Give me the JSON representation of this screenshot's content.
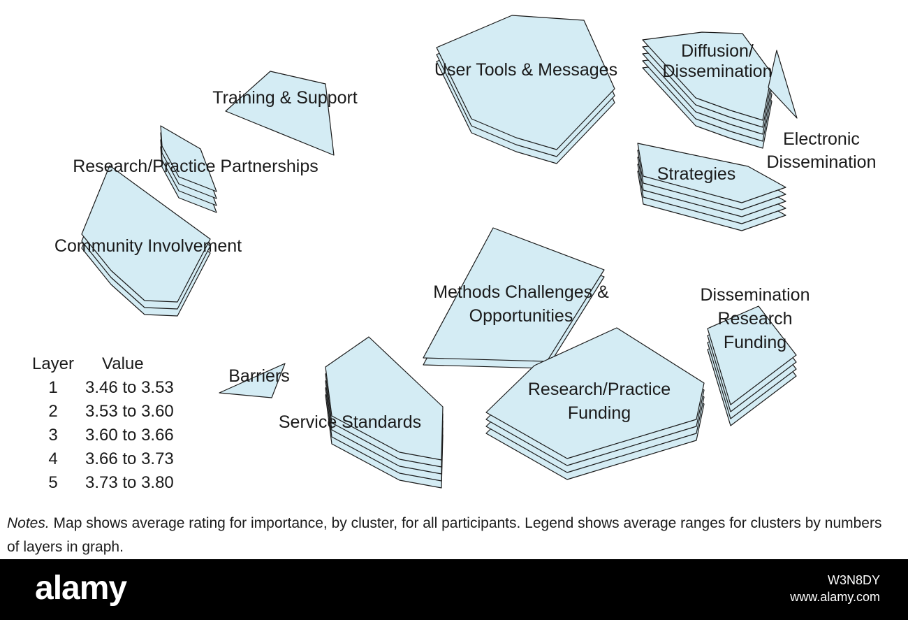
{
  "clusters": [
    {
      "id": "user-tools",
      "lines": [
        "User Tools & Messages"
      ],
      "layers": 3
    },
    {
      "id": "diffusion",
      "lines": [
        "Diffusion/",
        "Dissemination"
      ],
      "layers": 5
    },
    {
      "id": "electronic",
      "lines": [
        "Electronic",
        "Dissemination"
      ],
      "layers": 1
    },
    {
      "id": "strategies",
      "lines": [
        "Strategies"
      ],
      "layers": 5
    },
    {
      "id": "training",
      "lines": [
        "Training & Support"
      ],
      "layers": 1
    },
    {
      "id": "rp-partnerships",
      "lines": [
        "Research/Practice Partnerships"
      ],
      "layers": 4
    },
    {
      "id": "community",
      "lines": [
        "Community Involvement"
      ],
      "layers": 3
    },
    {
      "id": "methods",
      "lines": [
        "Methods Challenges &",
        "Opportunities"
      ],
      "layers": 2
    },
    {
      "id": "dissem-research",
      "lines": [
        "Dissemination",
        "Research",
        "Funding"
      ],
      "layers": 4
    },
    {
      "id": "rp-funding",
      "lines": [
        "Research/Practice",
        "Funding"
      ],
      "layers": 4
    },
    {
      "id": "barriers",
      "lines": [
        "Barriers"
      ],
      "layers": 1
    },
    {
      "id": "service",
      "lines": [
        "Service Standards"
      ],
      "layers": 5
    }
  ],
  "legend": {
    "header_layer": "Layer",
    "header_value": "Value",
    "rows": [
      {
        "layer": "1",
        "value": "3.46 to 3.53"
      },
      {
        "layer": "2",
        "value": "3.53 to 3.60"
      },
      {
        "layer": "3",
        "value": "3.60 to 3.66"
      },
      {
        "layer": "4",
        "value": "3.66 to 3.73"
      },
      {
        "layer": "5",
        "value": "3.73 to 3.80"
      }
    ]
  },
  "notes": {
    "prefix": "Notes.",
    "text": " Map shows average rating for importance, by cluster, for all participants. Legend shows average ranges for clusters by numbers of layers in graph."
  },
  "watermark": {
    "logo": "alamy",
    "image_id": "W3N8DY",
    "url": "www.alamy.com"
  },
  "colors": {
    "fill": "#d4ecf4",
    "stroke": "#1a1a1a",
    "text": "#1a1a1a"
  }
}
